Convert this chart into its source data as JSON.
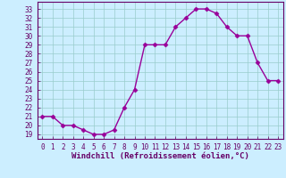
{
  "hours": [
    0,
    1,
    2,
    3,
    4,
    5,
    6,
    7,
    8,
    9,
    10,
    11,
    12,
    13,
    14,
    15,
    16,
    17,
    18,
    19,
    20,
    21,
    22,
    23
  ],
  "temps": [
    21,
    21,
    20,
    20,
    19.5,
    19,
    19,
    19.5,
    22,
    24,
    29,
    29,
    29,
    31,
    32,
    33,
    33,
    32.5,
    31,
    30,
    30,
    27,
    25,
    25
  ],
  "line_color": "#990099",
  "marker": "D",
  "marker_size": 2.5,
  "bg_color": "#cceeff",
  "grid_color": "#99cccc",
  "xlabel": "Windchill (Refroidissement éolien,°C)",
  "ylim": [
    18.5,
    33.8
  ],
  "xlim": [
    -0.5,
    23.5
  ],
  "yticks": [
    19,
    20,
    21,
    22,
    23,
    24,
    25,
    26,
    27,
    28,
    29,
    30,
    31,
    32,
    33
  ],
  "xticks": [
    0,
    1,
    2,
    3,
    4,
    5,
    6,
    7,
    8,
    9,
    10,
    11,
    12,
    13,
    14,
    15,
    16,
    17,
    18,
    19,
    20,
    21,
    22,
    23
  ],
  "tick_color": "#660066",
  "tick_fontsize": 5.5,
  "xlabel_fontsize": 6.5,
  "axis_label_color": "#660066",
  "line_width": 1.0,
  "spine_color": "#660066"
}
